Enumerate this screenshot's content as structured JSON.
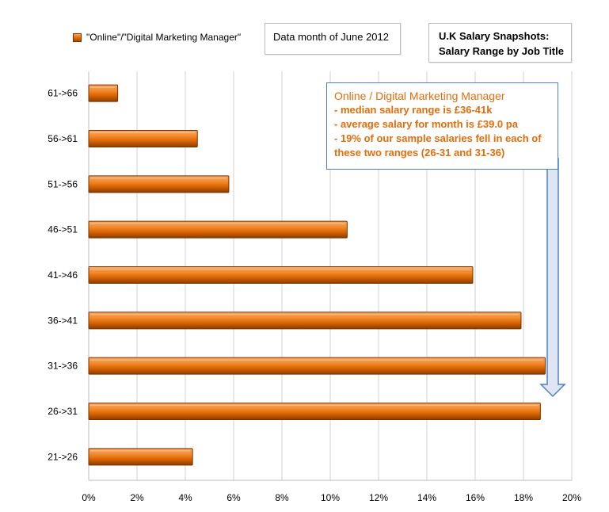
{
  "legend": {
    "label": "\"Online\"/\"Digital Marketing Manager\""
  },
  "data_month": "Data month of June 2012",
  "snapshot": {
    "line1": "U.K Salary Snapshots:",
    "line2": "Salary Range  by Job Title"
  },
  "callout": {
    "title": "Online / Digital Marketing Manager",
    "lines": [
      "- median salary range is £36-41k",
      "- average salary for month is £39.0  pa",
      "- 19% of our sample salaries fell in each of",
      "these two ranges (26-31 and 31-36)"
    ]
  },
  "colors": {
    "bar": "#e46c0a",
    "bar_light": "#f8a866",
    "bar_dark": "#8a3d00",
    "callout_border": "#4d7fc5",
    "grid": "#d0d0d0"
  },
  "chart_data": {
    "type": "bar",
    "orientation": "horizontal",
    "categories": [
      "61->66",
      "56->61",
      "51->56",
      "46->51",
      "41->46",
      "36->41",
      "31->36",
      "26->31",
      "21->26"
    ],
    "series": [
      {
        "name": "\"Online\"/\"Digital Marketing Manager\"",
        "values": [
          1.2,
          4.5,
          5.8,
          10.7,
          15.9,
          17.9,
          18.9,
          18.7,
          4.3
        ]
      }
    ],
    "xlim": [
      0,
      20
    ],
    "xticks": [
      "0%",
      "2%",
      "4%",
      "6%",
      "8%",
      "10%",
      "12%",
      "14%",
      "16%",
      "18%",
      "20%"
    ],
    "xtick_values": [
      0,
      2,
      4,
      6,
      8,
      10,
      12,
      14,
      16,
      18,
      20
    ],
    "grid": true,
    "legend_position": "top-left"
  }
}
